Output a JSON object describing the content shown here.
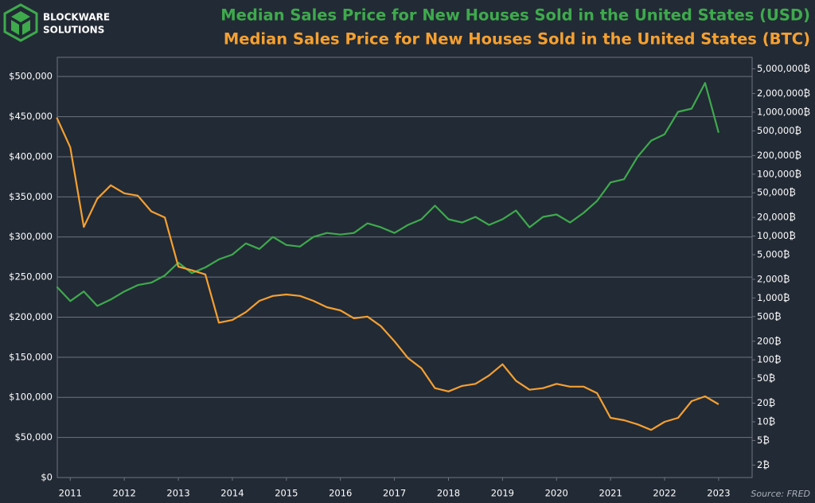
{
  "brand": [
    "BLOCKWARE",
    "SOLUTIONS"
  ],
  "chart_data": {
    "type": "line",
    "title": "Median Sales Price for New Houses Sold in the United States (USD)",
    "subtitle": "Median Sales Price for New Houses Sold in the United States (BTC)",
    "source": "Source: FRED",
    "x": [
      2010.75,
      2011,
      2011.25,
      2011.5,
      2011.75,
      2012,
      2012.25,
      2012.5,
      2012.75,
      2013,
      2013.25,
      2013.5,
      2013.75,
      2014,
      2014.25,
      2014.5,
      2014.75,
      2015,
      2015.25,
      2015.5,
      2015.75,
      2016,
      2016.25,
      2016.5,
      2016.75,
      2017,
      2017.25,
      2017.5,
      2017.75,
      2018,
      2018.25,
      2018.5,
      2018.75,
      2019,
      2019.25,
      2019.5,
      2019.75,
      2020,
      2020.25,
      2020.5,
      2020.75,
      2021,
      2021.25,
      2021.5,
      2021.75,
      2022,
      2022.25,
      2022.5,
      2022.75,
      2023
    ],
    "xlim": [
      2010.76,
      2023.62
    ],
    "xticks": [
      2011,
      2012,
      2013,
      2014,
      2015,
      2016,
      2017,
      2018,
      2019,
      2020,
      2021,
      2022,
      2023
    ],
    "ylim": [
      0,
      524000
    ],
    "yticks": [
      {
        "value": 0,
        "label": "$0"
      },
      {
        "value": 50000,
        "label": "$50,000"
      },
      {
        "value": 100000,
        "label": "$100,000"
      },
      {
        "value": 150000,
        "label": "$150,000"
      },
      {
        "value": 200000,
        "label": "$200,000"
      },
      {
        "value": 250000,
        "label": "$250,000"
      },
      {
        "value": 300000,
        "label": "$300,000"
      },
      {
        "value": 350000,
        "label": "$350,000"
      },
      {
        "value": 400000,
        "label": "$400,000"
      },
      {
        "value": 450000,
        "label": "$450,000"
      },
      {
        "value": 500000,
        "label": "$500,000"
      }
    ],
    "y2lim": [
      1.26,
      7700000
    ],
    "y2scale": "log",
    "y2ticks": [
      {
        "value": 2,
        "label": "2₿"
      },
      {
        "value": 5,
        "label": "5₿"
      },
      {
        "value": 10,
        "label": "10₿"
      },
      {
        "value": 20,
        "label": "20₿"
      },
      {
        "value": 50,
        "label": "50₿"
      },
      {
        "value": 100,
        "label": "100₿"
      },
      {
        "value": 200,
        "label": "200₿"
      },
      {
        "value": 500,
        "label": "500₿"
      },
      {
        "value": 1000,
        "label": "1,000₿"
      },
      {
        "value": 2000,
        "label": "2,000₿"
      },
      {
        "value": 5000,
        "label": "5,000₿"
      },
      {
        "value": 10000,
        "label": "10,000₿"
      },
      {
        "value": 20000,
        "label": "20,000₿"
      },
      {
        "value": 50000,
        "label": "50,000₿"
      },
      {
        "value": 100000,
        "label": "100,000₿"
      },
      {
        "value": 200000,
        "label": "200,000₿"
      },
      {
        "value": 500000,
        "label": "500,000₿"
      },
      {
        "value": 1000000,
        "label": "1,000,000₿"
      },
      {
        "value": 2000000,
        "label": "2,000,000₿"
      },
      {
        "value": 5000000,
        "label": "5,000,000₿"
      }
    ],
    "grid": true,
    "series": [
      {
        "color": "#3eaa4c",
        "values": [
          238000,
          220000,
          232000,
          214000,
          222000,
          232000,
          240000,
          243000,
          252000,
          268000,
          255000,
          262000,
          272000,
          278000,
          292000,
          285000,
          300000,
          290000,
          288000,
          300000,
          305000,
          303000,
          305000,
          317000,
          312000,
          305000,
          315000,
          322000,
          339000,
          322000,
          318000,
          325000,
          315000,
          322000,
          333000,
          312000,
          325000,
          328000,
          318000,
          330000,
          345000,
          368000,
          372000,
          400000,
          420000,
          428000,
          456000,
          460000,
          492000,
          430000
        ]
      },
      {
        "color": "#f5a030",
        "axis": "y2",
        "values": [
          820000,
          270000,
          14000,
          40000,
          66000,
          49000,
          45000,
          25000,
          20000,
          3200,
          2800,
          2400,
          400,
          440,
          590,
          900,
          1080,
          1140,
          1080,
          900,
          710,
          630,
          470,
          500,
          350,
          200,
          107,
          73,
          35,
          31,
          38,
          41,
          56,
          85,
          46,
          33,
          35,
          41,
          37,
          37,
          29,
          11.6,
          10.6,
          9.1,
          7.4,
          10,
          11.6,
          21.6,
          25.8,
          19.2
        ]
      }
    ]
  }
}
